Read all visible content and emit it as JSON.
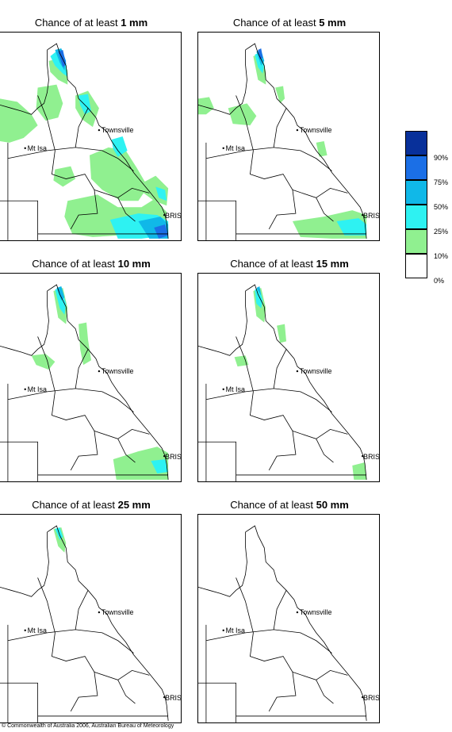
{
  "panels": [
    {
      "title_prefix": "Chance of at least ",
      "amount": "1 mm"
    },
    {
      "title_prefix": "Chance of at least ",
      "amount": "5 mm"
    },
    {
      "title_prefix": "Chance of at least ",
      "amount": "10 mm"
    },
    {
      "title_prefix": "Chance of at least ",
      "amount": "15 mm"
    },
    {
      "title_prefix": "Chance of at least ",
      "amount": "25 mm"
    },
    {
      "title_prefix": "Chance of at least ",
      "amount": "50 mm"
    }
  ],
  "places": {
    "townsville": "Townsville",
    "mt_isa": "Mt Isa",
    "bris": "BRIS"
  },
  "legend": {
    "labels": [
      "90%",
      "75%",
      "50%",
      "25%",
      "10%",
      "0%"
    ],
    "colors": [
      "#08309a",
      "#1b6fe6",
      "#10b8e8",
      "#2ef2f2",
      "#90f090",
      "#ffffff"
    ]
  },
  "copyright": "© Commonwealth of Australia 2006, Australian Bureau of Meteorology"
}
